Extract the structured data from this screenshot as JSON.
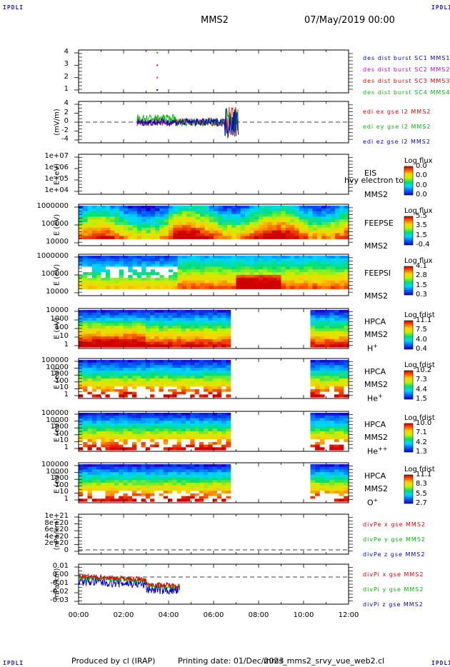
{
  "header": {
    "logo": "IPDLI",
    "spacecraft": "MMS2",
    "datetime": "07/May/2019 00:00"
  },
  "footer": {
    "produced_by": "Produced by cl (IRAP)",
    "printing_date": "Printing date: 01/Dec/2023",
    "filename": "mms_mms2_srvy_vue_web2.cl"
  },
  "colors": {
    "sc1": "#0000cc",
    "sc2": "#cc00cc",
    "sc3": "#dd0000",
    "sc4": "#00bb00",
    "x": "#dd0000",
    "y": "#00bb00",
    "z": "#0000cc"
  },
  "chart_data": {
    "type": "multi-panel",
    "x": {
      "tick_labels": [
        "00:00",
        "02:00",
        "04:00",
        "06:00",
        "08:00",
        "10:00",
        "12:00"
      ],
      "range_hours": [
        0,
        12
      ]
    },
    "panels": [
      {
        "id": "des-dist-burst",
        "type": "scatter",
        "ylabel": "",
        "yticks": [
          "4",
          "3",
          "2",
          "1"
        ],
        "ylim": [
          0.5,
          4.5
        ],
        "series": [
          {
            "name": "des dist burst SC1 MMS1",
            "color": "#0000cc",
            "x_hours": [
              3.5
            ],
            "y": [
              1
            ]
          },
          {
            "name": "des dist burst SC2 MMS2",
            "color": "#cc00cc",
            "x_hours": [
              3.5
            ],
            "y": [
              2
            ]
          },
          {
            "name": "des dist burst SC3 MMS3",
            "color": "#dd0000",
            "x_hours": [
              3.5
            ],
            "y": [
              3
            ]
          },
          {
            "name": "des dist burst SC4 MMS4",
            "color": "#00bb00",
            "x_hours": [
              3.5
            ],
            "y": [
              4
            ]
          }
        ]
      },
      {
        "id": "edi-e",
        "type": "line",
        "ylabel": "(mV/m)",
        "yticks": [
          "4",
          "2",
          "0",
          "-2",
          "-4"
        ],
        "ylim": [
          -4.5,
          4.5
        ],
        "zero_line": true,
        "data_span_hours": [
          2.6,
          7.1
        ],
        "series": [
          {
            "name": "edi ex gse l2 MMS2",
            "color": "#dd0000"
          },
          {
            "name": "edi ey gse l2 MMS2",
            "color": "#00bb00"
          },
          {
            "name": "edi ez gse l2 MMS2",
            "color": "#0000cc"
          }
        ]
      },
      {
        "id": "eis",
        "type": "heatmap",
        "ylabel": "E (eV)",
        "yticks": [
          "1e+07",
          "1e+06",
          "1e+05",
          "1e+04"
        ],
        "labels": [
          "EIS",
          "MMS2"
        ],
        "overlay_text": "hvy electron to",
        "colorbar": {
          "title": "Log flux",
          "ticks": [
            "0.0",
            "0.0",
            "0.0",
            "0.0"
          ]
        },
        "data": "none"
      },
      {
        "id": "feepse",
        "type": "heatmap",
        "ylabel": "E (eV)",
        "yticks": [
          "1000000",
          "100000",
          "10000"
        ],
        "labels": [
          "FEEPSE",
          "MMS2"
        ],
        "colorbar": {
          "title": "Log flux",
          "ticks": [
            "5.5",
            "3.5",
            "1.5",
            "-0.4"
          ]
        },
        "data_span_hours": [
          0,
          12
        ]
      },
      {
        "id": "feepsi",
        "type": "heatmap",
        "ylabel": "E (eV)",
        "yticks": [
          "1000000",
          "100000",
          "10000"
        ],
        "labels": [
          "FEEPSI",
          "MMS2"
        ],
        "colorbar": {
          "title": "Log flux",
          "ticks": [
            "4.1",
            "2.8",
            "1.5",
            "0.3"
          ]
        },
        "data_span_hours": [
          0,
          12
        ]
      },
      {
        "id": "hpca-h",
        "type": "heatmap",
        "ylabel": "E (eV)",
        "yticks": [
          "10000",
          "1000",
          "100",
          "10",
          "1"
        ],
        "labels": [
          "HPCA",
          "MMS2",
          "H"
        ],
        "species_sup": "+",
        "colorbar": {
          "title": "Log fdist",
          "ticks": [
            "11.1",
            "7.5",
            "4.0",
            "0.4"
          ]
        },
        "data_spans_hours": [
          [
            0,
            6.75
          ],
          [
            10.3,
            12
          ]
        ]
      },
      {
        "id": "hpca-he",
        "type": "heatmap",
        "ylabel": "E (eV)",
        "yticks": [
          "100000",
          "10000",
          "1000",
          "100",
          "10",
          "1"
        ],
        "labels": [
          "HPCA",
          "MMS2",
          "He"
        ],
        "species_sup": "+",
        "colorbar": {
          "title": "Log fdist",
          "ticks": [
            "10.2",
            "7.3",
            "4.4",
            "1.5"
          ]
        },
        "data_spans_hours": [
          [
            0,
            6.75
          ],
          [
            10.3,
            12
          ]
        ]
      },
      {
        "id": "hpca-he2",
        "type": "heatmap",
        "ylabel": "E (eV)",
        "yticks": [
          "100000",
          "10000",
          "1000",
          "100",
          "10",
          "1"
        ],
        "labels": [
          "HPCA",
          "MMS2",
          "He"
        ],
        "species_sup": "++",
        "colorbar": {
          "title": "Log fdist",
          "ticks": [
            "10.0",
            "7.1",
            "4.2",
            "1.3"
          ]
        },
        "data_spans_hours": [
          [
            0,
            6.75
          ],
          [
            10.3,
            12
          ]
        ]
      },
      {
        "id": "hpca-o",
        "type": "heatmap",
        "ylabel": "E (eV)",
        "yticks": [
          "100000",
          "10000",
          "1000",
          "100",
          "10",
          "1"
        ],
        "labels": [
          "HPCA",
          "MMS2",
          "O"
        ],
        "species_sup": "+",
        "colorbar": {
          "title": "Log fdist",
          "ticks": [
            "11.1",
            "8.3",
            "5.5",
            "2.7"
          ]
        },
        "data_spans_hours": [
          [
            0,
            6.75
          ],
          [
            10.3,
            12
          ]
        ]
      },
      {
        "id": "divpe",
        "type": "line",
        "ylabel": "(nPa/km)",
        "yticks": [
          "1e+21",
          "8e+20",
          "6e+20",
          "4e+20",
          "2e+20",
          "0"
        ],
        "ylim": [
          0,
          1e+21
        ],
        "zero_line": true,
        "series": [
          {
            "name": "divPe x gse MMS2",
            "color": "#dd0000"
          },
          {
            "name": "divPe y gse MMS2",
            "color": "#00bb00"
          },
          {
            "name": "divPe z gse MMS2",
            "color": "#0000cc"
          }
        ]
      },
      {
        "id": "divpi",
        "type": "line",
        "ylabel": "(nPa/km)",
        "yticks": [
          "0.01",
          "0.00",
          "-0.01",
          "-0.02",
          "-0.03"
        ],
        "ylim": [
          -0.035,
          0.015
        ],
        "zero_line": true,
        "data_span_hours": [
          0,
          4.5
        ],
        "series": [
          {
            "name": "divPi x gse MMS2",
            "color": "#dd0000"
          },
          {
            "name": "divPi y gse MMS2",
            "color": "#00bb00"
          },
          {
            "name": "divPi z gse MMS2",
            "color": "#0000cc"
          }
        ]
      }
    ]
  }
}
